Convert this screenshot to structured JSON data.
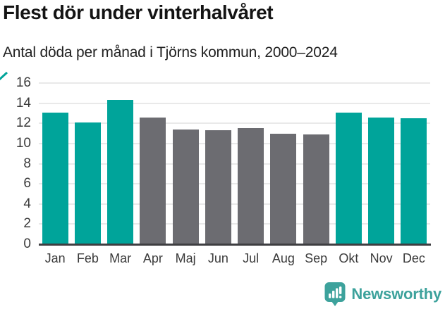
{
  "header": {
    "title": "Flest dör under vinterhalvåret",
    "subtitle": "Antal döda per månad i Tjörns kommun, 2000–2024"
  },
  "chart_data": {
    "type": "bar",
    "title": "Flest dör under vinterhalvåret",
    "subtitle": "Antal döda per månad i Tjörns kommun, 2000–2024",
    "categories": [
      "Jan",
      "Feb",
      "Mar",
      "Apr",
      "Maj",
      "Jun",
      "Jul",
      "Aug",
      "Sep",
      "Okt",
      "Nov",
      "Dec"
    ],
    "values": [
      13.1,
      12.1,
      14.3,
      12.6,
      11.4,
      11.3,
      11.5,
      11.0,
      10.9,
      13.1,
      12.6,
      12.5
    ],
    "highlighted_categories": [
      "Jan",
      "Feb",
      "Mar",
      "Okt",
      "Nov",
      "Dec"
    ],
    "xlabel": "",
    "ylabel": "",
    "ylim": [
      0,
      16
    ],
    "yticks": [
      0,
      2,
      4,
      6,
      8,
      10,
      12,
      14,
      16
    ],
    "grid": true,
    "legend": false,
    "colors": {
      "highlight_bar": "#00a49a",
      "default_bar": "#6c6c71",
      "gridline": "#e9e9e9",
      "axis_line": "#3e3e41",
      "tick_text": "#3b3b3b"
    }
  },
  "footer": {
    "brand": "Newsworthy",
    "brand_color": "#3da29c",
    "logo_icon": "bar-chart-speech-bubble"
  }
}
